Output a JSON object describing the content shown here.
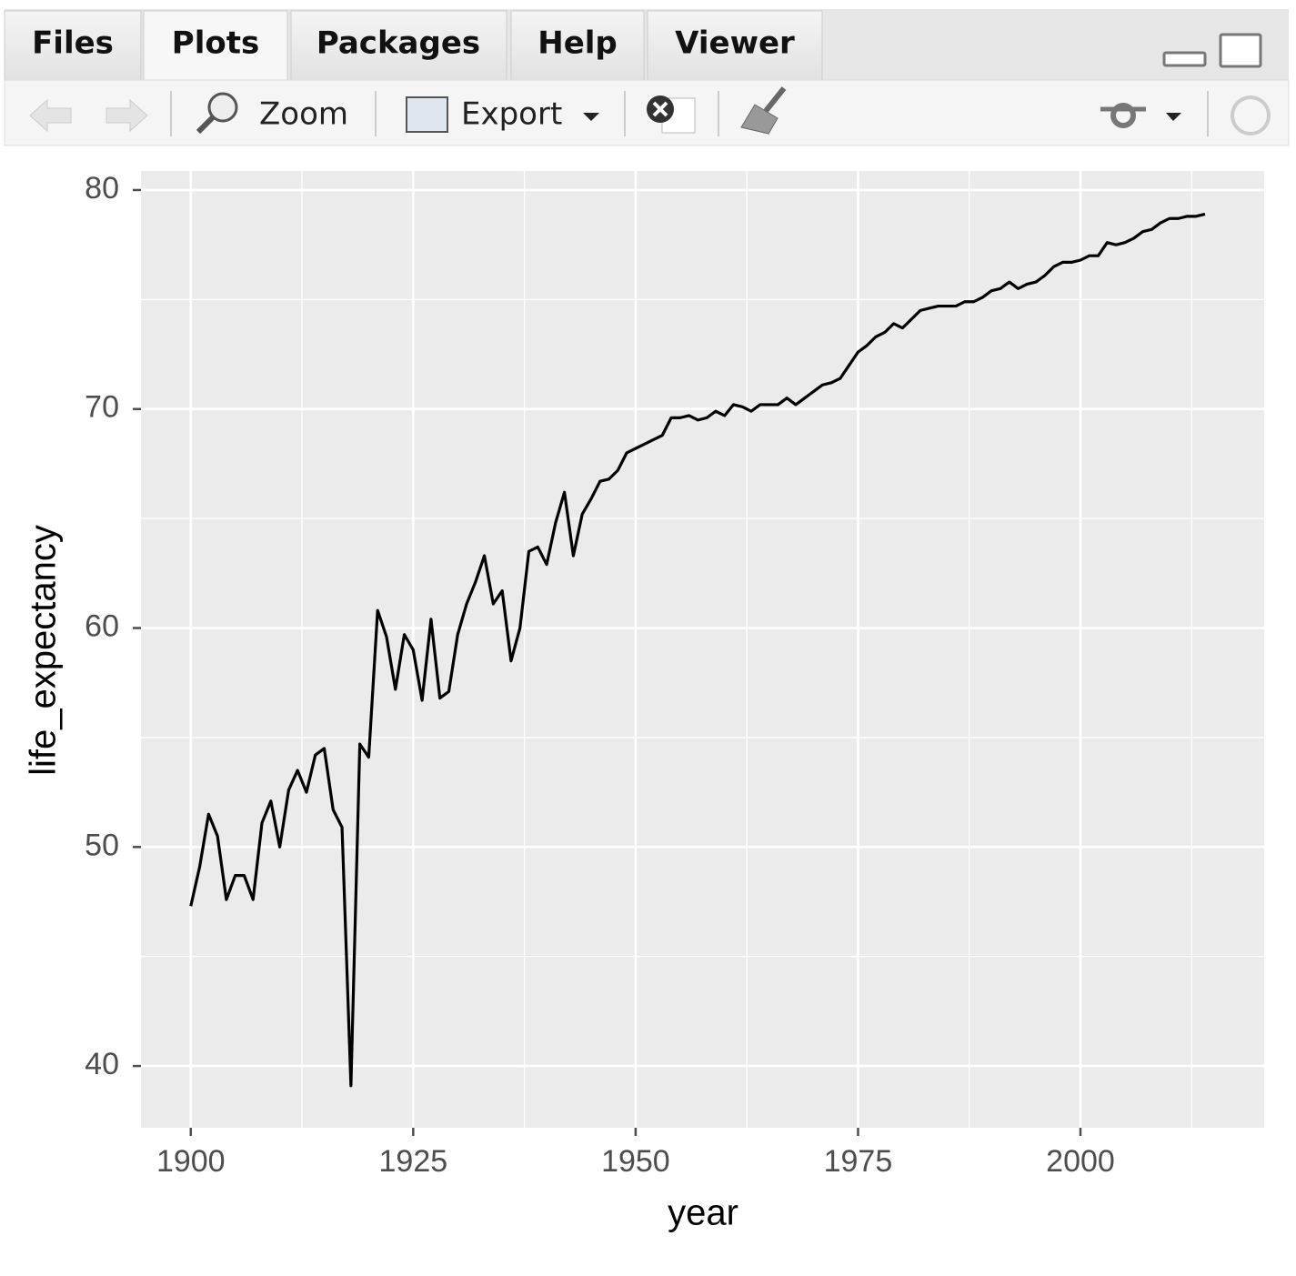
{
  "ui": {
    "tabs": [
      "Files",
      "Plots",
      "Packages",
      "Help",
      "Viewer"
    ],
    "toolbar": {
      "zoom": "Zoom",
      "export": "Export"
    }
  },
  "chart_data": {
    "type": "line",
    "xlabel": "year",
    "ylabel": "life_expectancy",
    "x": [
      1900,
      1901,
      1902,
      1903,
      1904,
      1905,
      1906,
      1907,
      1908,
      1909,
      1910,
      1911,
      1912,
      1913,
      1914,
      1915,
      1916,
      1917,
      1918,
      1919,
      1920,
      1921,
      1922,
      1923,
      1924,
      1925,
      1926,
      1927,
      1928,
      1929,
      1930,
      1931,
      1932,
      1933,
      1934,
      1935,
      1936,
      1937,
      1938,
      1939,
      1940,
      1941,
      1942,
      1943,
      1944,
      1945,
      1946,
      1947,
      1948,
      1949,
      1950,
      1951,
      1952,
      1953,
      1954,
      1955,
      1956,
      1957,
      1958,
      1959,
      1960,
      1961,
      1962,
      1963,
      1964,
      1965,
      1966,
      1967,
      1968,
      1969,
      1970,
      1971,
      1972,
      1973,
      1974,
      1975,
      1976,
      1977,
      1978,
      1979,
      1980,
      1981,
      1982,
      1983,
      1984,
      1985,
      1986,
      1987,
      1988,
      1989,
      1990,
      1991,
      1992,
      1993,
      1994,
      1995,
      1996,
      1997,
      1998,
      1999,
      2000,
      2001,
      2002,
      2003,
      2004,
      2005,
      2006,
      2007,
      2008,
      2009,
      2010,
      2011,
      2012,
      2013,
      2014
    ],
    "values": [
      47.3,
      49.1,
      51.5,
      50.5,
      47.6,
      48.7,
      48.7,
      47.6,
      51.1,
      52.1,
      50.0,
      52.6,
      53.5,
      52.5,
      54.2,
      54.5,
      51.7,
      50.9,
      39.1,
      54.7,
      54.1,
      60.8,
      59.6,
      57.2,
      59.7,
      59.0,
      56.7,
      60.4,
      56.8,
      57.1,
      59.7,
      61.1,
      62.1,
      63.3,
      61.1,
      61.7,
      58.5,
      60.0,
      63.5,
      63.7,
      62.9,
      64.8,
      66.2,
      63.3,
      65.2,
      65.9,
      66.7,
      66.8,
      67.2,
      68.0,
      68.2,
      68.4,
      68.6,
      68.8,
      69.6,
      69.6,
      69.7,
      69.5,
      69.6,
      69.9,
      69.7,
      70.2,
      70.1,
      69.9,
      70.2,
      70.2,
      70.2,
      70.5,
      70.2,
      70.5,
      70.8,
      71.1,
      71.2,
      71.4,
      72.0,
      72.6,
      72.9,
      73.3,
      73.5,
      73.9,
      73.7,
      74.1,
      74.5,
      74.6,
      74.7,
      74.7,
      74.7,
      74.9,
      74.9,
      75.1,
      75.4,
      75.5,
      75.8,
      75.5,
      75.7,
      75.8,
      76.1,
      76.5,
      76.7,
      76.7,
      76.8,
      77.0,
      77.0,
      77.6,
      77.5,
      77.6,
      77.8,
      78.1,
      78.2,
      78.5,
      78.7,
      78.7,
      78.8,
      78.8,
      78.9
    ],
    "color": "#000000",
    "xlim": [
      1894.4,
      2020.65
    ],
    "xticks": [
      1900,
      1925,
      1950,
      1975,
      2000
    ],
    "ylim": [
      37.18,
      80.87
    ],
    "yticks": [
      40,
      50,
      60,
      70,
      80
    ],
    "grid": true
  }
}
